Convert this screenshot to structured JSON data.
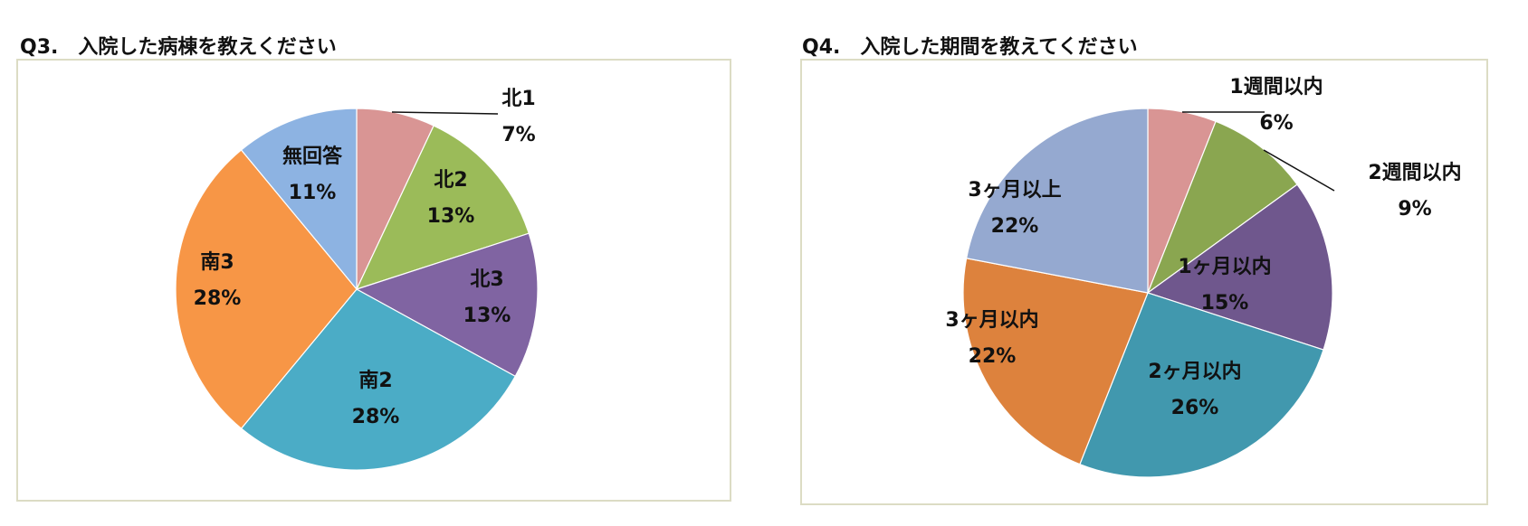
{
  "chart_data": [
    {
      "type": "pie",
      "title": "Q3.　入院した病棟を教えください",
      "slices": [
        {
          "label": "北1",
          "value": 7,
          "value_label": "7%",
          "color": "#d99594"
        },
        {
          "label": "北2",
          "value": 13,
          "value_label": "13%",
          "color": "#9bbb59"
        },
        {
          "label": "北3",
          "value": 13,
          "value_label": "13%",
          "color": "#8064a2"
        },
        {
          "label": "南2",
          "value": 28,
          "value_label": "28%",
          "color": "#4bacc6"
        },
        {
          "label": "南3",
          "value": 28,
          "value_label": "28%",
          "color": "#f79646"
        },
        {
          "label": "無回答",
          "value": 11,
          "value_label": "11%",
          "color": "#8db3e2"
        }
      ]
    },
    {
      "type": "pie",
      "title": "Q4.　入院した期間を教えてください",
      "slices": [
        {
          "label": "1週間以内",
          "value": 6,
          "value_label": "6%",
          "color": "#d99594"
        },
        {
          "label": "2週間以内",
          "value": 9,
          "value_label": "9%",
          "color": "#8aa650"
        },
        {
          "label": "1ヶ月以内",
          "value": 15,
          "value_label": "15%",
          "color": "#6f578d"
        },
        {
          "label": "2ヶ月以内",
          "value": 26,
          "value_label": "26%",
          "color": "#4198ae"
        },
        {
          "label": "3ヶ月以内",
          "value": 22,
          "value_label": "22%",
          "color": "#dd823d"
        },
        {
          "label": "3ヶ月以上",
          "value": 22,
          "value_label": "22%",
          "color": "#95a9d0"
        }
      ]
    }
  ]
}
